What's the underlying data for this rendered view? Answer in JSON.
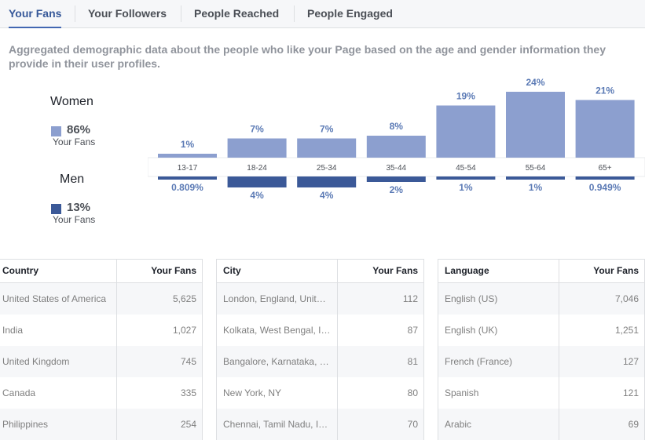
{
  "tabs": [
    {
      "label": "Your Fans",
      "active": true
    },
    {
      "label": "Your Followers",
      "active": false
    },
    {
      "label": "People Reached",
      "active": false
    },
    {
      "label": "People Engaged",
      "active": false
    }
  ],
  "description": "Aggregated demographic data about the people who like your Page based on the age and gender information they provide in their user profiles.",
  "legend": {
    "women": {
      "label": "Women",
      "pct": "86%",
      "sub": "Your Fans",
      "color": "#8c9fcf"
    },
    "men": {
      "label": "Men",
      "pct": "13%",
      "sub": "Your Fans",
      "color": "#3b5998"
    }
  },
  "chart_data": {
    "type": "bar",
    "categories": [
      "13-17",
      "18-24",
      "25-34",
      "35-44",
      "45-54",
      "55-64",
      "65+"
    ],
    "series": [
      {
        "name": "Women",
        "values": [
          1,
          7,
          7,
          8,
          19,
          24,
          21
        ],
        "labels": [
          "1%",
          "7%",
          "7%",
          "8%",
          "19%",
          "24%",
          "21%"
        ]
      },
      {
        "name": "Men",
        "values": [
          0.809,
          4,
          4,
          2,
          1,
          1,
          0.949
        ],
        "labels": [
          "0.809%",
          "4%",
          "4%",
          "2%",
          "1%",
          "1%",
          "0.949%"
        ]
      }
    ]
  },
  "tables": [
    {
      "headers": [
        "Country",
        "Your Fans"
      ],
      "rows": [
        [
          "United States of America",
          "5,625"
        ],
        [
          "India",
          "1,027"
        ],
        [
          "United Kingdom",
          "745"
        ],
        [
          "Canada",
          "335"
        ],
        [
          "Philippines",
          "254"
        ]
      ]
    },
    {
      "headers": [
        "City",
        "Your Fans"
      ],
      "rows": [
        [
          "London, England, Unit…",
          "112"
        ],
        [
          "Kolkata, West Bengal, I…",
          "87"
        ],
        [
          "Bangalore, Karnataka, …",
          "81"
        ],
        [
          "New York, NY",
          "80"
        ],
        [
          "Chennai, Tamil Nadu, I…",
          "70"
        ]
      ]
    },
    {
      "headers": [
        "Language",
        "Your Fans"
      ],
      "rows": [
        [
          "English (US)",
          "7,046"
        ],
        [
          "English (UK)",
          "1,251"
        ],
        [
          "French (France)",
          "127"
        ],
        [
          "Spanish",
          "121"
        ],
        [
          "Arabic",
          "69"
        ]
      ]
    }
  ]
}
